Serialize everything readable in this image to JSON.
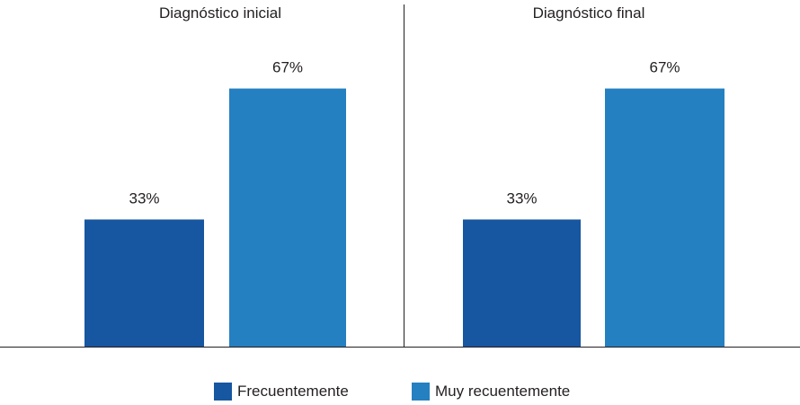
{
  "chart_data": [
    {
      "type": "bar",
      "title": "Diagnóstico inicial",
      "series": [
        {
          "name": "Frecuentemente",
          "values": [
            33
          ],
          "labels": [
            "33%"
          ]
        },
        {
          "name": "Muy recuentemente",
          "values": [
            67
          ],
          "labels": [
            "67%"
          ]
        }
      ],
      "ylim": [
        0,
        100
      ]
    },
    {
      "type": "bar",
      "title": "Diagnóstico final",
      "series": [
        {
          "name": "Frecuentemente",
          "values": [
            33
          ],
          "labels": [
            "33%"
          ]
        },
        {
          "name": "Muy recuentemente",
          "values": [
            67
          ],
          "labels": [
            "67%"
          ]
        }
      ],
      "ylim": [
        0,
        100
      ]
    }
  ],
  "legend": [
    {
      "label": "Frecuentemente",
      "color": "#1756a0"
    },
    {
      "label": "Muy recuentemente",
      "color": "#2480c0"
    }
  ],
  "colors": {
    "axis": "#231f20",
    "text": "#231f20"
  }
}
